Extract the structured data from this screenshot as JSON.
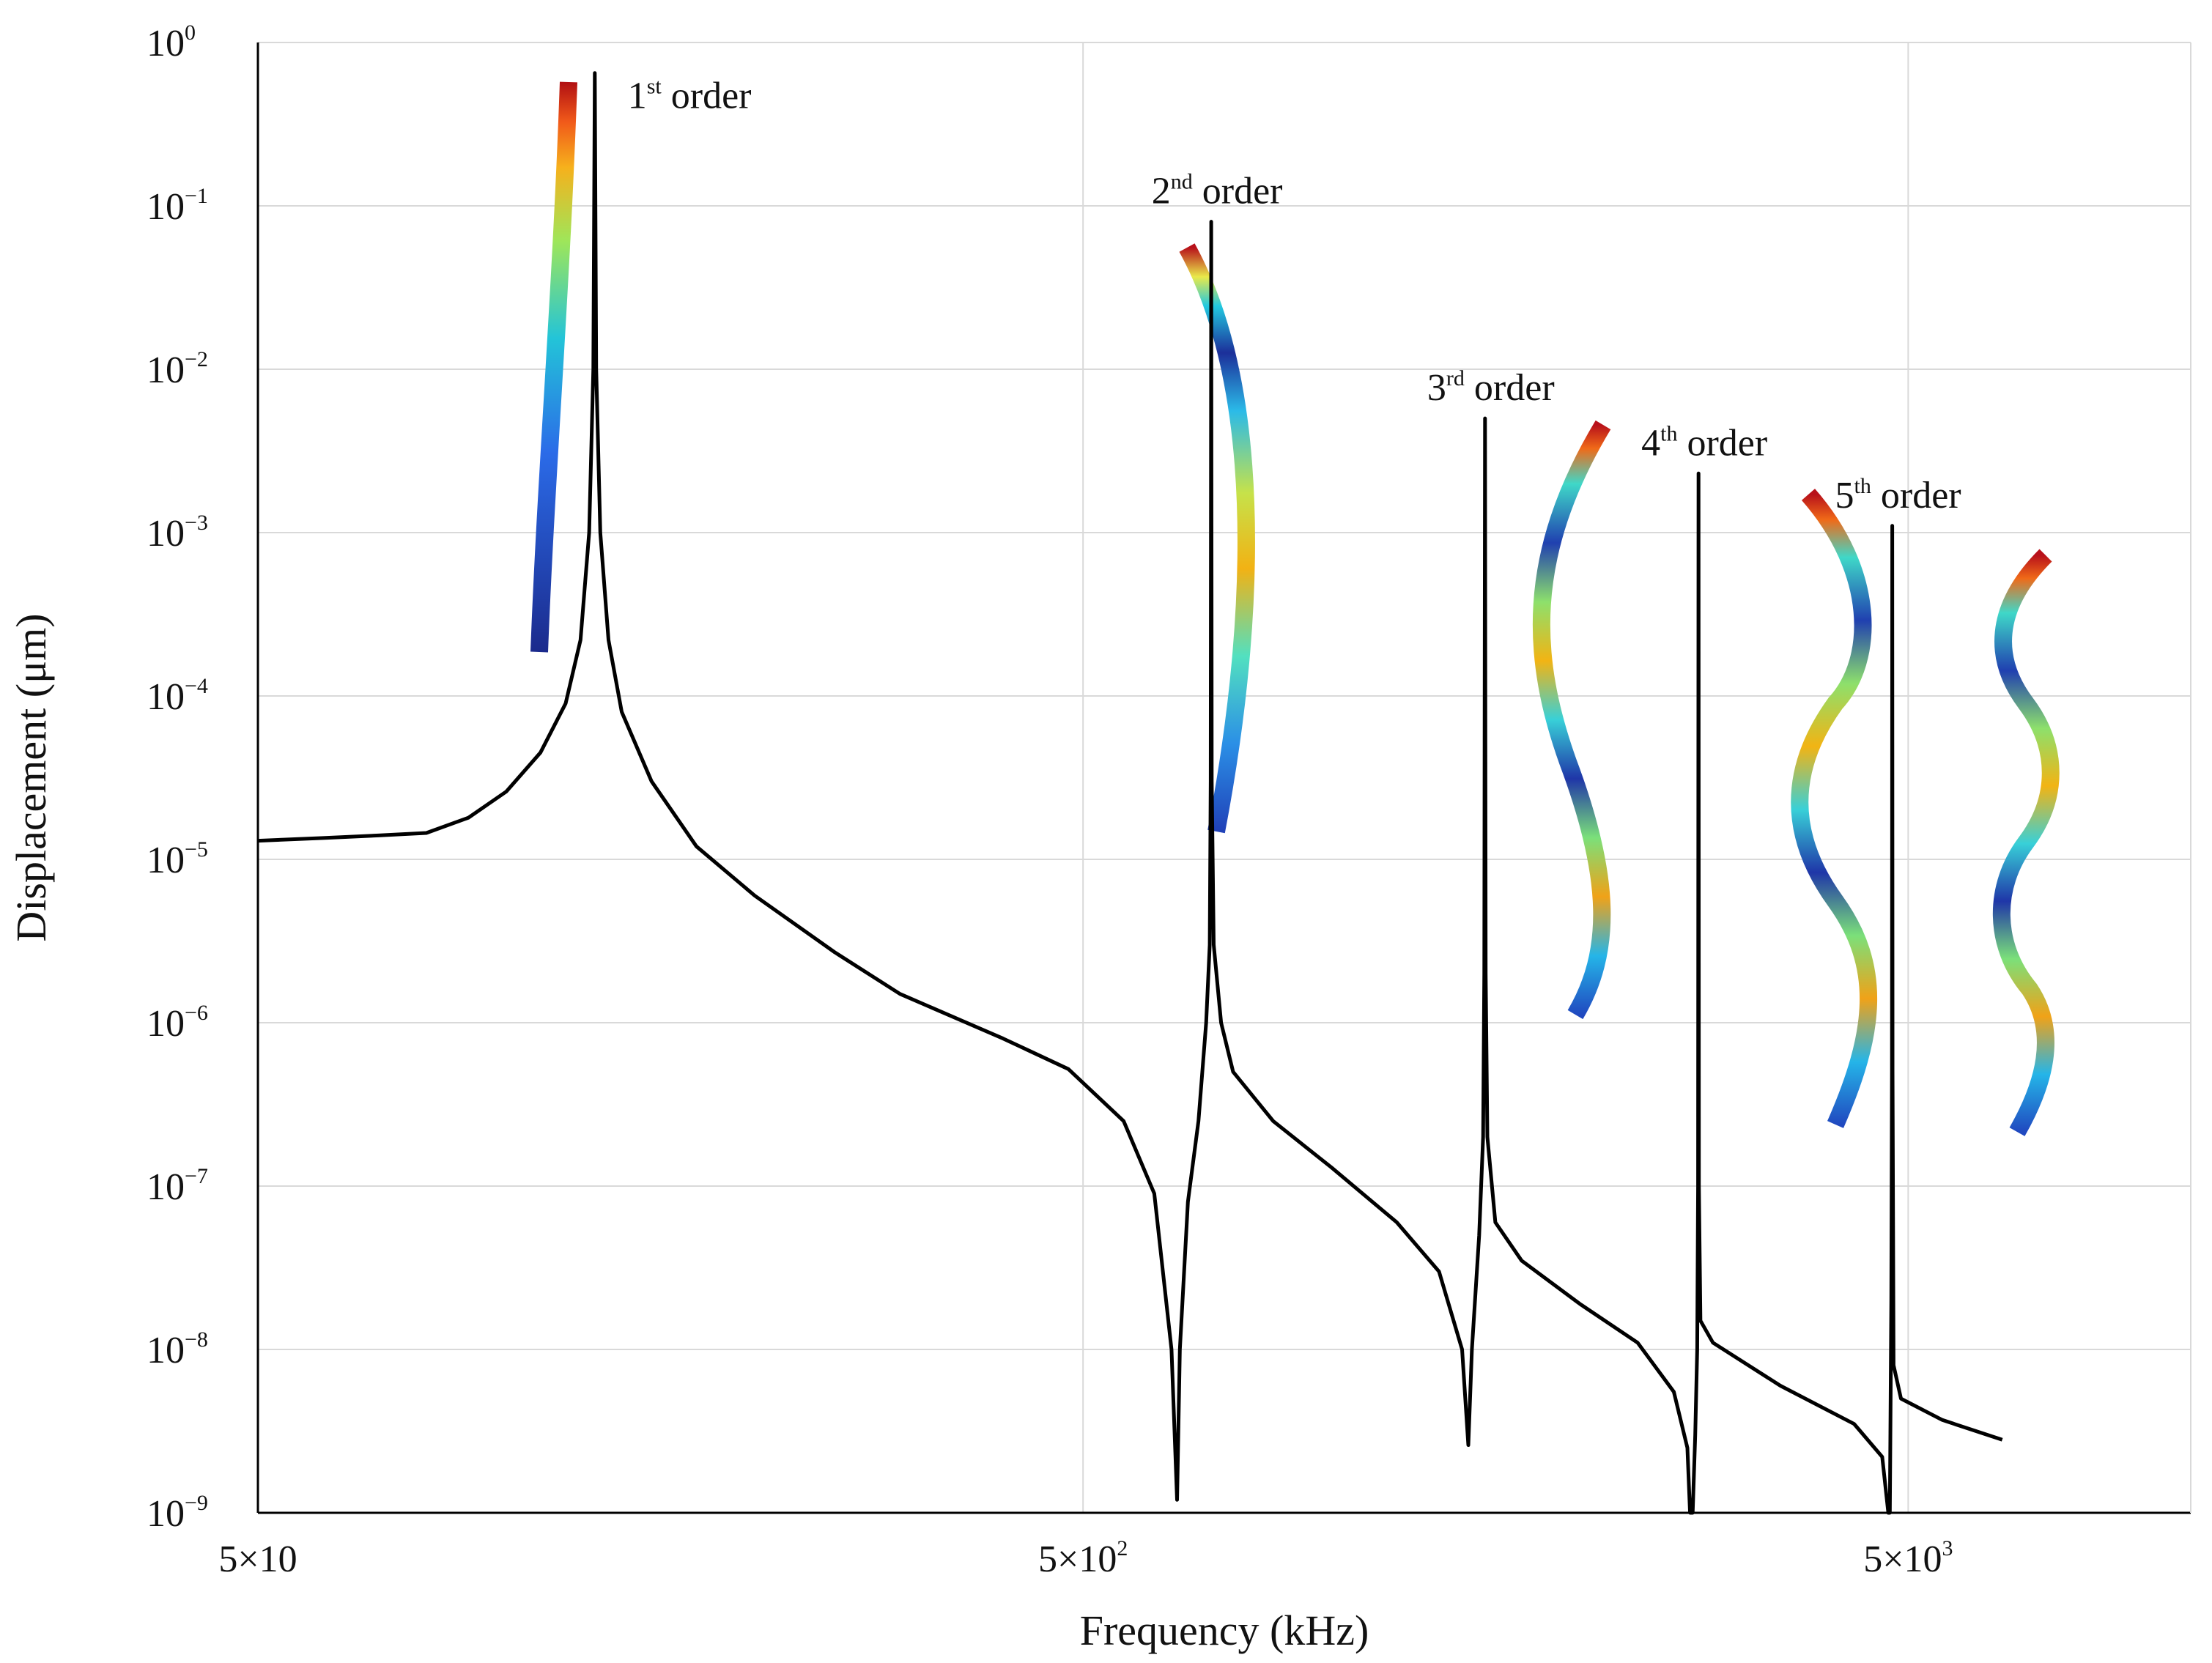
{
  "chart_data": {
    "type": "line",
    "title": "",
    "xlabel": "Frequency (kHz)",
    "ylabel": "Displacement (μm)",
    "x_scale": "log",
    "y_scale": "log",
    "xlim": [
      50,
      11000
    ],
    "ylim": [
      1e-09,
      1
    ],
    "grid": true,
    "x_ticks": [
      {
        "value": 50,
        "mantissa": "5×10",
        "exponent": ""
      },
      {
        "value": 500,
        "mantissa": "5×10",
        "exponent": "2"
      },
      {
        "value": 5000,
        "mantissa": "5×10",
        "exponent": "3"
      }
    ],
    "y_ticks": [
      {
        "value": 1,
        "exponent": "0"
      },
      {
        "value": 0.1,
        "exponent": "−1"
      },
      {
        "value": 0.01,
        "exponent": "−2"
      },
      {
        "value": 0.001,
        "exponent": "−3"
      },
      {
        "value": 0.0001,
        "exponent": "−4"
      },
      {
        "value": 1e-05,
        "exponent": "−5"
      },
      {
        "value": 1e-06,
        "exponent": "−6"
      },
      {
        "value": 1e-07,
        "exponent": "−7"
      },
      {
        "value": 1e-08,
        "exponent": "−8"
      },
      {
        "value": 1e-09,
        "exponent": "−9"
      }
    ],
    "y_tick_base": "10",
    "series": [
      {
        "color": "#000000",
        "points": [
          [
            50,
            1.3e-05
          ],
          [
            60,
            1.35e-05
          ],
          [
            70,
            1.4e-05
          ],
          [
            80,
            1.45e-05
          ],
          [
            90,
            1.8e-05
          ],
          [
            100,
            2.6e-05
          ],
          [
            110,
            4.5e-05
          ],
          [
            118,
            9e-05
          ],
          [
            123,
            0.00022
          ],
          [
            126,
            0.001
          ],
          [
            127.5,
            0.01
          ],
          [
            128,
            0.65
          ],
          [
            128.5,
            0.01
          ],
          [
            130,
            0.001
          ],
          [
            133,
            0.00022
          ],
          [
            138,
            8e-05
          ],
          [
            150,
            3e-05
          ],
          [
            170,
            1.2e-05
          ],
          [
            200,
            6e-06
          ],
          [
            250,
            2.7e-06
          ],
          [
            300,
            1.5e-06
          ],
          [
            400,
            8e-07
          ],
          [
            480,
            5.2e-07
          ],
          [
            560,
            2.5e-07
          ],
          [
            610,
            9e-08
          ],
          [
            640,
            1e-08
          ],
          [
            650,
            1.2e-09
          ],
          [
            655,
            1e-08
          ],
          [
            670,
            8e-08
          ],
          [
            690,
            2.5e-07
          ],
          [
            705,
            1e-06
          ],
          [
            712,
            3e-06
          ],
          [
            714,
            3e-05
          ],
          [
            715,
            0.08
          ],
          [
            716,
            3e-05
          ],
          [
            720,
            3e-06
          ],
          [
            735,
            1e-06
          ],
          [
            760,
            5e-07
          ],
          [
            850,
            2.5e-07
          ],
          [
            1000,
            1.3e-07
          ],
          [
            1200,
            6e-08
          ],
          [
            1350,
            3e-08
          ],
          [
            1440,
            1e-08
          ],
          [
            1465,
            2.6e-09
          ],
          [
            1480,
            1e-08
          ],
          [
            1510,
            5e-08
          ],
          [
            1527,
            2e-07
          ],
          [
            1532,
            2e-06
          ],
          [
            1535,
            0.005
          ],
          [
            1538,
            2e-06
          ],
          [
            1545,
            2e-07
          ],
          [
            1580,
            6e-08
          ],
          [
            1700,
            3.5e-08
          ],
          [
            2000,
            1.9e-08
          ],
          [
            2350,
            1.1e-08
          ],
          [
            2600,
            5.5e-09
          ],
          [
            2700,
            2.5e-09
          ],
          [
            2720,
            1e-09
          ],
          [
            2740,
            1e-09
          ],
          [
            2760,
            3e-09
          ],
          [
            2775,
            1e-08
          ],
          [
            2782,
            1e-07
          ],
          [
            2785,
            0.0023
          ],
          [
            2788,
            1e-07
          ],
          [
            2800,
            1.5e-08
          ],
          [
            2900,
            1.1e-08
          ],
          [
            3500,
            6e-09
          ],
          [
            4300,
            3.5e-09
          ],
          [
            4650,
            2.2e-09
          ],
          [
            4730,
            1e-09
          ],
          [
            4750,
            1e-09
          ],
          [
            4770,
            2e-08
          ],
          [
            4778,
            5e-07
          ],
          [
            4782,
            0.0011
          ],
          [
            4786,
            5e-07
          ],
          [
            4800,
            8e-09
          ],
          [
            4900,
            5e-09
          ],
          [
            5500,
            3.7e-09
          ],
          [
            6500,
            2.8e-09
          ]
        ]
      }
    ],
    "annotations": [
      {
        "ordinal": "1",
        "suffix": "st",
        "word": "order",
        "x": 128,
        "y": 0.65
      },
      {
        "ordinal": "2",
        "suffix": "nd",
        "word": "order",
        "x": 715,
        "y": 0.08
      },
      {
        "ordinal": "3",
        "suffix": "rd",
        "word": "order",
        "x": 1535,
        "y": 0.005
      },
      {
        "ordinal": "4",
        "suffix": "th",
        "word": "order",
        "x": 2785,
        "y": 0.0023
      },
      {
        "ordinal": "5",
        "suffix": "th",
        "word": "order",
        "x": 4782,
        "y": 0.0011
      }
    ],
    "mode_shapes": [
      {
        "order": 1,
        "colormap": "jet"
      },
      {
        "order": 2,
        "colormap": "jet"
      },
      {
        "order": 3,
        "colormap": "jet"
      },
      {
        "order": 4,
        "colormap": "jet"
      },
      {
        "order": 5,
        "colormap": "jet"
      }
    ]
  }
}
